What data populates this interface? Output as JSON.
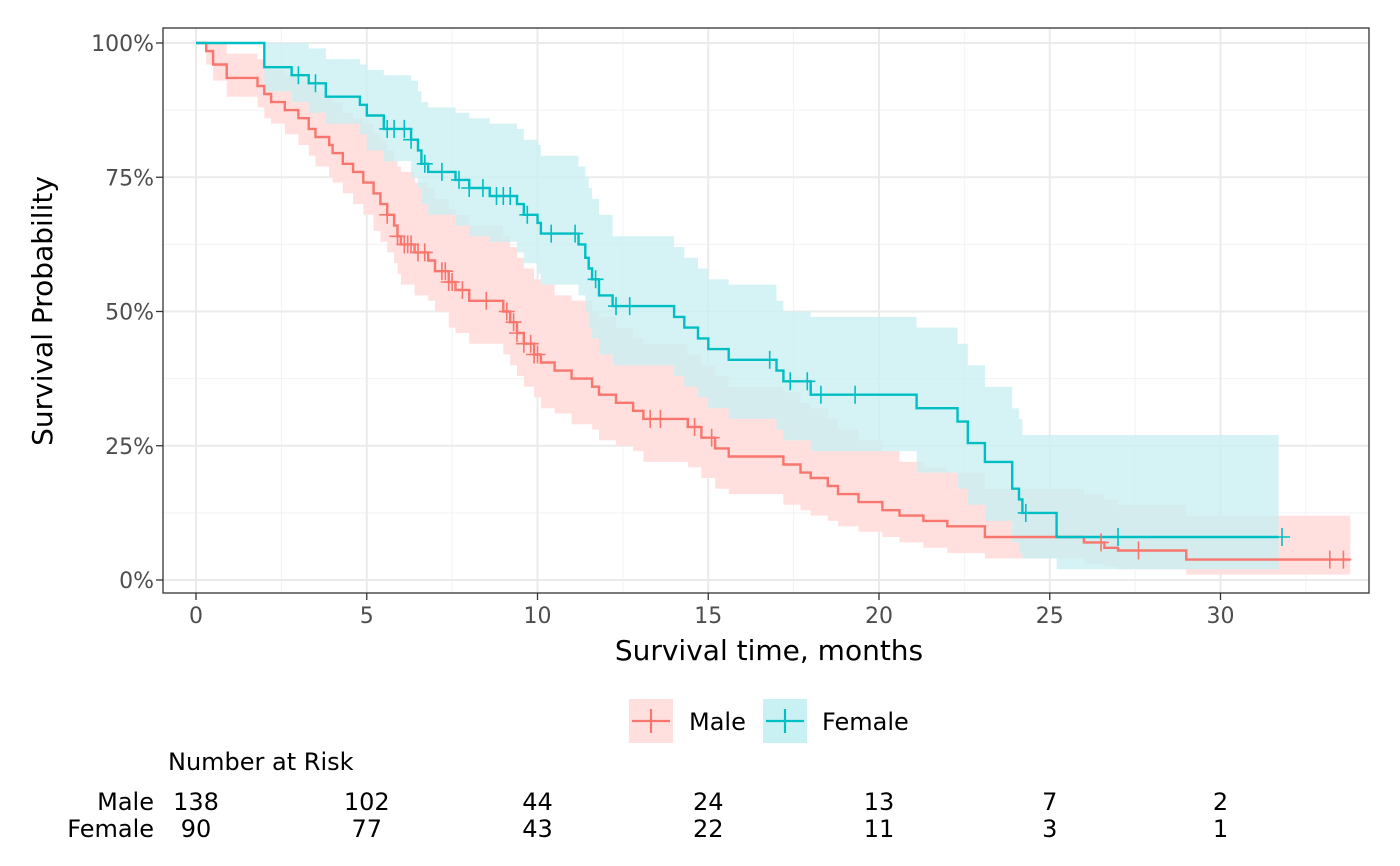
{
  "chart_data": {
    "type": "line",
    "subtype": "kaplan-meier survival curve",
    "xlabel": "Survival time, months",
    "ylabel": "Survival Probability",
    "xlim": [
      -1,
      34.2
    ],
    "ylim": [
      -0.02,
      1.02
    ],
    "x_ticks": [
      0,
      5,
      10,
      15,
      20,
      25,
      30
    ],
    "x_tick_labels": [
      "0",
      "5",
      "10",
      "15",
      "20",
      "25",
      "30"
    ],
    "y_ticks": [
      0,
      0.25,
      0.5,
      0.75,
      1.0
    ],
    "y_tick_labels": [
      "0%",
      "25%",
      "50%",
      "75%",
      "100%"
    ],
    "grid": true,
    "legend_position": "bottom",
    "colors": {
      "male": "#F8766D",
      "female": "#00BFC4",
      "male_band": "#FFE0DF",
      "female_band": "#C9F0F2",
      "overlap_band": "#CEDCDC"
    },
    "series": [
      {
        "name": "Male",
        "color": "#F8766D",
        "steps": [
          [
            0,
            1.0
          ],
          [
            0.3,
            0.985
          ],
          [
            0.5,
            0.96
          ],
          [
            0.9,
            0.935
          ],
          [
            1.8,
            0.92
          ],
          [
            2,
            0.905
          ],
          [
            2.2,
            0.89
          ],
          [
            2.6,
            0.875
          ],
          [
            3,
            0.86
          ],
          [
            3.3,
            0.84
          ],
          [
            3.5,
            0.825
          ],
          [
            3.9,
            0.81
          ],
          [
            4,
            0.795
          ],
          [
            4.3,
            0.775
          ],
          [
            4.6,
            0.76
          ],
          [
            4.9,
            0.74
          ],
          [
            5.2,
            0.72
          ],
          [
            5.4,
            0.7
          ],
          [
            5.6,
            0.68
          ],
          [
            5.8,
            0.66
          ],
          [
            5.9,
            0.64
          ],
          [
            6.0,
            0.625
          ],
          [
            6.4,
            0.61
          ],
          [
            6.8,
            0.595
          ],
          [
            7.0,
            0.575
          ],
          [
            7.4,
            0.555
          ],
          [
            7.6,
            0.54
          ],
          [
            8.0,
            0.52
          ],
          [
            9.0,
            0.5
          ],
          [
            9.2,
            0.48
          ],
          [
            9.4,
            0.46
          ],
          [
            9.6,
            0.44
          ],
          [
            9.9,
            0.42
          ],
          [
            10.1,
            0.405
          ],
          [
            10.5,
            0.39
          ],
          [
            11,
            0.375
          ],
          [
            11.6,
            0.36
          ],
          [
            11.8,
            0.345
          ],
          [
            12.3,
            0.33
          ],
          [
            12.8,
            0.315
          ],
          [
            13.1,
            0.3
          ],
          [
            14.4,
            0.285
          ],
          [
            14.8,
            0.265
          ],
          [
            15.2,
            0.245
          ],
          [
            15.6,
            0.23
          ],
          [
            17.2,
            0.215
          ],
          [
            17.7,
            0.2
          ],
          [
            18,
            0.19
          ],
          [
            18.5,
            0.175
          ],
          [
            18.8,
            0.16
          ],
          [
            19.4,
            0.145
          ],
          [
            20.1,
            0.13
          ],
          [
            20.6,
            0.12
          ],
          [
            21.3,
            0.11
          ],
          [
            22.0,
            0.1
          ],
          [
            23.1,
            0.08
          ],
          [
            24.1,
            0.08
          ],
          [
            26.0,
            0.07
          ],
          [
            26.6,
            0.06
          ],
          [
            27,
            0.055
          ],
          [
            29,
            0.038
          ],
          [
            33.8,
            0.038
          ]
        ],
        "band": [
          [
            0,
            1.0,
            1.0
          ],
          [
            0.3,
            0.96,
            1.0
          ],
          [
            0.5,
            0.93,
            1.0
          ],
          [
            0.9,
            0.9,
            0.98
          ],
          [
            1.8,
            0.88,
            0.97
          ],
          [
            2,
            0.86,
            0.96
          ],
          [
            2.2,
            0.85,
            0.95
          ],
          [
            2.6,
            0.83,
            0.94
          ],
          [
            3,
            0.81,
            0.93
          ],
          [
            3.3,
            0.79,
            0.92
          ],
          [
            3.5,
            0.77,
            0.91
          ],
          [
            3.9,
            0.75,
            0.9
          ],
          [
            4,
            0.74,
            0.89
          ],
          [
            4.3,
            0.72,
            0.87
          ],
          [
            4.6,
            0.7,
            0.86
          ],
          [
            4.9,
            0.68,
            0.85
          ],
          [
            5.2,
            0.65,
            0.83
          ],
          [
            5.4,
            0.63,
            0.82
          ],
          [
            5.6,
            0.61,
            0.8
          ],
          [
            5.8,
            0.59,
            0.78
          ],
          [
            5.9,
            0.57,
            0.77
          ],
          [
            6.0,
            0.55,
            0.76
          ],
          [
            6.4,
            0.53,
            0.74
          ],
          [
            6.8,
            0.52,
            0.73
          ],
          [
            7.0,
            0.5,
            0.71
          ],
          [
            7.4,
            0.47,
            0.69
          ],
          [
            7.6,
            0.46,
            0.68
          ],
          [
            8.0,
            0.44,
            0.66
          ],
          [
            9.0,
            0.42,
            0.64
          ],
          [
            9.2,
            0.4,
            0.62
          ],
          [
            9.4,
            0.38,
            0.6
          ],
          [
            9.6,
            0.36,
            0.58
          ],
          [
            9.9,
            0.34,
            0.56
          ],
          [
            10.1,
            0.32,
            0.55
          ],
          [
            10.5,
            0.31,
            0.53
          ],
          [
            11,
            0.29,
            0.52
          ],
          [
            11.6,
            0.28,
            0.5
          ],
          [
            11.8,
            0.26,
            0.49
          ],
          [
            12.3,
            0.25,
            0.47
          ],
          [
            12.8,
            0.24,
            0.45
          ],
          [
            13.1,
            0.22,
            0.44
          ],
          [
            14.4,
            0.21,
            0.42
          ],
          [
            14.8,
            0.19,
            0.4
          ],
          [
            15.2,
            0.17,
            0.38
          ],
          [
            15.6,
            0.16,
            0.36
          ],
          [
            17.2,
            0.14,
            0.35
          ],
          [
            17.7,
            0.13,
            0.33
          ],
          [
            18,
            0.12,
            0.32
          ],
          [
            18.5,
            0.11,
            0.3
          ],
          [
            18.8,
            0.1,
            0.28
          ],
          [
            19.4,
            0.09,
            0.26
          ],
          [
            20.1,
            0.08,
            0.24
          ],
          [
            20.6,
            0.07,
            0.22
          ],
          [
            21.3,
            0.06,
            0.21
          ],
          [
            22.0,
            0.05,
            0.2
          ],
          [
            23.1,
            0.04,
            0.17
          ],
          [
            24.1,
            0.04,
            0.17
          ],
          [
            26.0,
            0.03,
            0.16
          ],
          [
            26.6,
            0.025,
            0.15
          ],
          [
            27,
            0.02,
            0.14
          ],
          [
            29,
            0.01,
            0.12
          ],
          [
            33.8,
            0.01,
            0.12
          ]
        ],
        "censored_x": [
          5.6,
          5.9,
          6.1,
          6.2,
          6.3,
          6.5,
          6.7,
          7.2,
          7.3,
          7.4,
          7.5,
          7.8,
          8.5,
          9.1,
          9.3,
          9.4,
          9.6,
          9.8,
          9.9,
          10.0,
          13.3,
          13.6,
          14.6,
          15.1,
          26.5,
          27.6,
          33.2,
          33.6
        ]
      },
      {
        "name": "Female",
        "color": "#00BFC4",
        "steps": [
          [
            0,
            1.0
          ],
          [
            2.0,
            0.955
          ],
          [
            2.8,
            0.94
          ],
          [
            3.3,
            0.925
          ],
          [
            3.8,
            0.9
          ],
          [
            4.8,
            0.885
          ],
          [
            5.0,
            0.865
          ],
          [
            5.5,
            0.84
          ],
          [
            6.3,
            0.82
          ],
          [
            6.5,
            0.8
          ],
          [
            6.6,
            0.775
          ],
          [
            6.8,
            0.76
          ],
          [
            7.6,
            0.745
          ],
          [
            8.0,
            0.73
          ],
          [
            8.6,
            0.715
          ],
          [
            9.4,
            0.7
          ],
          [
            9.6,
            0.68
          ],
          [
            10.0,
            0.665
          ],
          [
            10.1,
            0.645
          ],
          [
            11.2,
            0.625
          ],
          [
            11.4,
            0.6
          ],
          [
            11.5,
            0.58
          ],
          [
            11.6,
            0.56
          ],
          [
            11.8,
            0.53
          ],
          [
            12.2,
            0.51
          ],
          [
            14,
            0.49
          ],
          [
            14.3,
            0.47
          ],
          [
            14.7,
            0.45
          ],
          [
            15,
            0.43
          ],
          [
            15.6,
            0.41
          ],
          [
            17.0,
            0.39
          ],
          [
            17.2,
            0.37
          ],
          [
            18.0,
            0.345
          ],
          [
            21.1,
            0.32
          ],
          [
            22.3,
            0.295
          ],
          [
            22.6,
            0.255
          ],
          [
            23.1,
            0.22
          ],
          [
            23.9,
            0.17
          ],
          [
            24.1,
            0.15
          ],
          [
            24.2,
            0.125
          ],
          [
            25.2,
            0.08
          ],
          [
            31.7,
            0.08
          ]
        ],
        "band": [
          [
            0,
            1.0,
            1.0
          ],
          [
            2.0,
            0.91,
            1.0
          ],
          [
            2.8,
            0.89,
            1.0
          ],
          [
            3.3,
            0.87,
            0.99
          ],
          [
            3.8,
            0.85,
            0.97
          ],
          [
            4.8,
            0.83,
            0.96
          ],
          [
            5.0,
            0.8,
            0.95
          ],
          [
            5.5,
            0.78,
            0.94
          ],
          [
            6.3,
            0.75,
            0.93
          ],
          [
            6.5,
            0.73,
            0.91
          ],
          [
            6.6,
            0.7,
            0.89
          ],
          [
            6.8,
            0.68,
            0.88
          ],
          [
            7.6,
            0.66,
            0.87
          ],
          [
            8.0,
            0.64,
            0.86
          ],
          [
            8.6,
            0.63,
            0.85
          ],
          [
            9.4,
            0.61,
            0.84
          ],
          [
            9.6,
            0.59,
            0.82
          ],
          [
            10.0,
            0.57,
            0.81
          ],
          [
            10.1,
            0.55,
            0.79
          ],
          [
            11.2,
            0.53,
            0.77
          ],
          [
            11.4,
            0.5,
            0.75
          ],
          [
            11.5,
            0.47,
            0.73
          ],
          [
            11.6,
            0.45,
            0.71
          ],
          [
            11.8,
            0.42,
            0.68
          ],
          [
            12.2,
            0.4,
            0.64
          ],
          [
            14,
            0.38,
            0.62
          ],
          [
            14.3,
            0.36,
            0.6
          ],
          [
            14.7,
            0.34,
            0.58
          ],
          [
            15,
            0.32,
            0.56
          ],
          [
            15.6,
            0.3,
            0.55
          ],
          [
            17.0,
            0.28,
            0.52
          ],
          [
            17.2,
            0.26,
            0.5
          ],
          [
            18.0,
            0.24,
            0.49
          ],
          [
            21.1,
            0.2,
            0.47
          ],
          [
            22.3,
            0.17,
            0.44
          ],
          [
            22.6,
            0.14,
            0.4
          ],
          [
            23.1,
            0.11,
            0.36
          ],
          [
            23.9,
            0.07,
            0.32
          ],
          [
            24.1,
            0.05,
            0.3
          ],
          [
            24.2,
            0.04,
            0.27
          ],
          [
            25.2,
            0.02,
            0.27
          ],
          [
            31.7,
            0.02,
            0.27
          ]
        ],
        "censored_x": [
          3.0,
          3.5,
          5.6,
          5.8,
          6.1,
          6.3,
          6.7,
          7.2,
          7.7,
          8.0,
          8.4,
          8.8,
          9.0,
          9.2,
          9.7,
          10.4,
          11.1,
          11.7,
          12.3,
          12.7,
          16.8,
          17.4,
          17.9,
          18.3,
          19.3,
          24.3,
          27.0,
          31.8
        ]
      }
    ],
    "risk_table": {
      "title": "Number at Risk",
      "times": [
        0,
        5,
        10,
        15,
        20,
        25,
        30
      ],
      "rows": [
        {
          "label": "Male",
          "values": [
            "138",
            "102",
            "44",
            "24",
            "13",
            "7",
            "2"
          ]
        },
        {
          "label": "Female",
          "values": [
            "90",
            "77",
            "43",
            "22",
            "11",
            "3",
            "1"
          ]
        }
      ]
    }
  }
}
